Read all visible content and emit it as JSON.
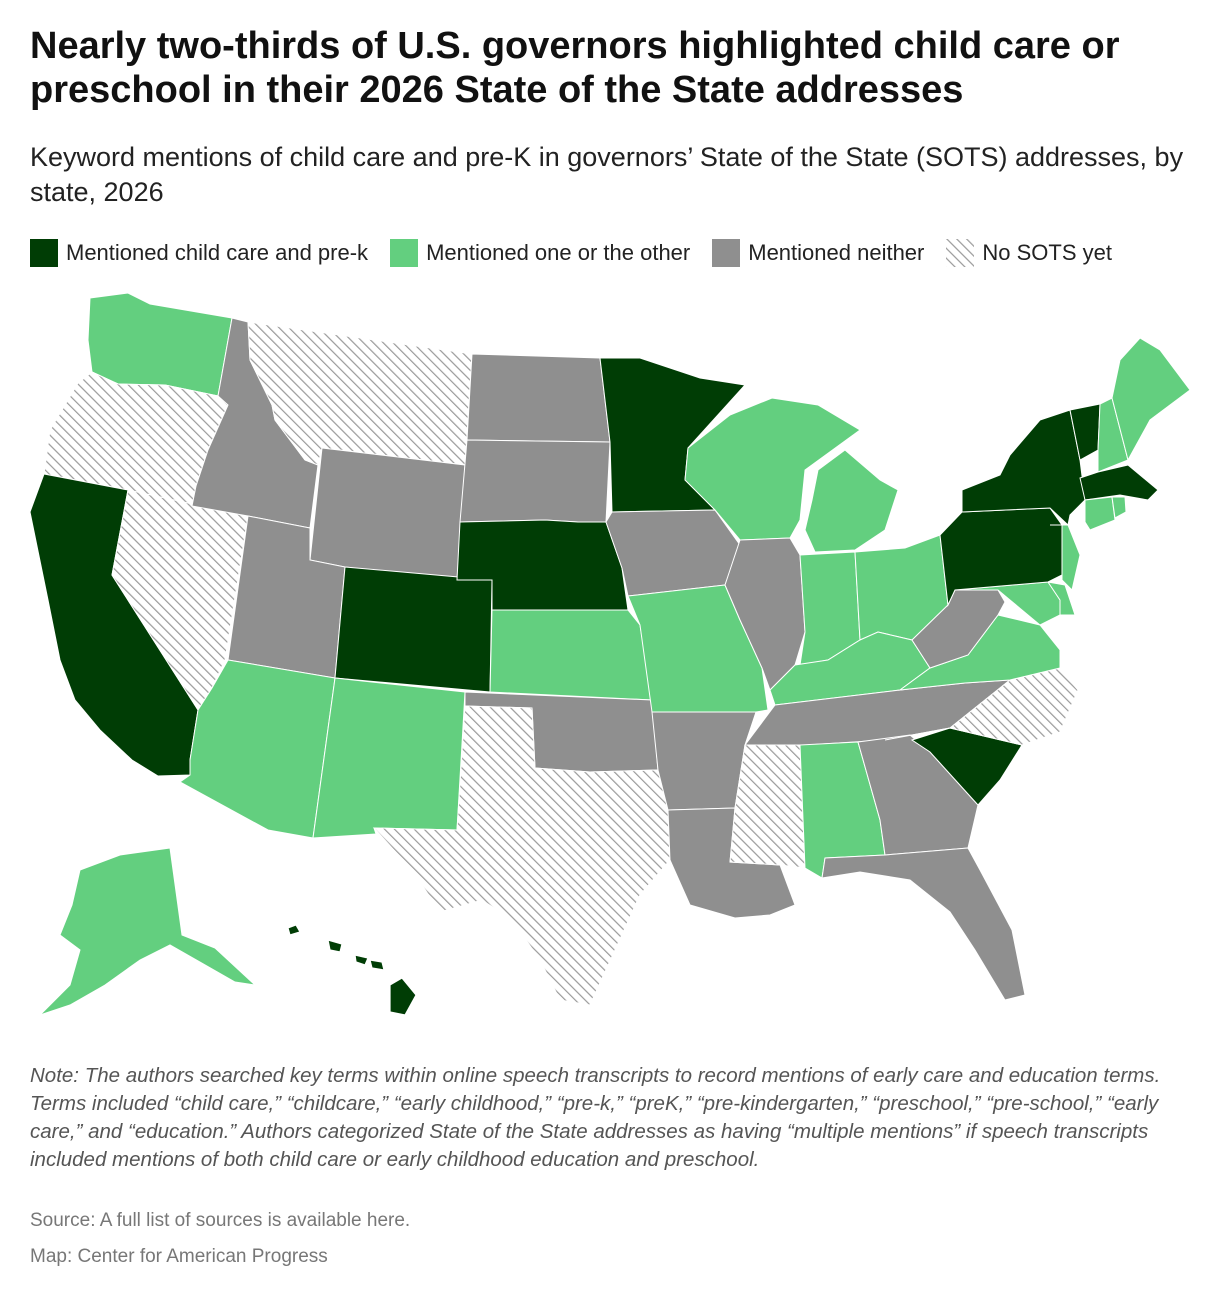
{
  "title": "Nearly two-thirds of U.S. governors highlighted child care or preschool in their 2026 State of the State addresses",
  "subtitle": "Keyword mentions of child care and pre-K in governors’ State of the State (SOTS) addresses, by state, 2026",
  "legend": [
    {
      "label": "Mentioned child care and pre-k",
      "category": "both",
      "color": "#003d05"
    },
    {
      "label": "Mentioned one or the other",
      "category": "one",
      "color": "#63cf7f"
    },
    {
      "label": "Mentioned neither",
      "category": "neither",
      "color": "#8f8f8f"
    },
    {
      "label": "No SOTS yet",
      "category": "none",
      "color": "#ffffff"
    }
  ],
  "colors": {
    "both": "#003d05",
    "one": "#63cf7f",
    "neither": "#8f8f8f",
    "none_hatch": "#9a9a9a"
  },
  "note": "Note: The authors searched key terms within online speech transcripts to record mentions of early care and education terms. Terms included “child care,” “childcare,” “early childhood,” “pre-k,” “preK,” “pre-kindergarten,” “preschool,” “pre-school,” “early care,” and “education.” Authors categorized State of the State addresses as having “multiple mentions” if speech transcripts included mentions of both child care or early childhood education and preschool.",
  "source": "Source: A full list of sources is available here.",
  "credit": "Map: Center for American Progress",
  "states": {
    "WA": "one",
    "OR": "none",
    "CA": "both",
    "NV": "none",
    "ID": "neither",
    "MT": "none",
    "WY": "neither",
    "UT": "neither",
    "AZ": "one",
    "CO": "both",
    "NM": "one",
    "ND": "neither",
    "SD": "neither",
    "NE": "both",
    "KS": "one",
    "OK": "neither",
    "TX": "none",
    "MN": "both",
    "IA": "neither",
    "MO": "one",
    "AR": "neither",
    "LA": "neither",
    "WI": "one",
    "IL": "neither",
    "MI": "one",
    "IN": "one",
    "OH": "one",
    "KY": "one",
    "TN": "neither",
    "MS": "none",
    "AL": "one",
    "GA": "neither",
    "FL": "neither",
    "SC": "both",
    "NC": "none",
    "VA": "one",
    "WV": "neither",
    "MD": "one",
    "DE": "one",
    "PA": "both",
    "NJ": "one",
    "NY": "both",
    "CT": "one",
    "RI": "one",
    "MA": "both",
    "VT": "both",
    "NH": "one",
    "ME": "one",
    "AK": "one",
    "HI": "both"
  }
}
